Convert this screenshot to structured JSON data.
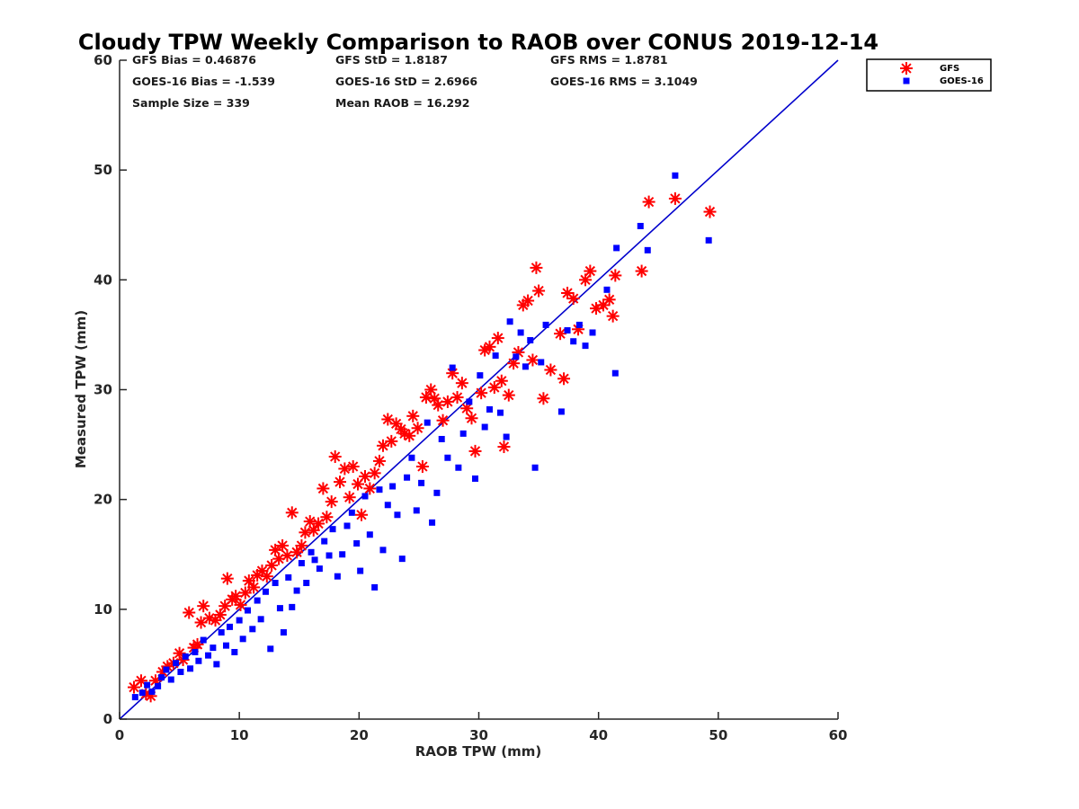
{
  "chart_data": {
    "type": "scatter",
    "title": "Cloudy TPW Weekly Comparison to RAOB over CONUS 2019-12-14",
    "xlabel": "RAOB TPW (mm)",
    "ylabel": "Measured TPW (mm)",
    "xlim": [
      0,
      60
    ],
    "ylim": [
      0,
      60
    ],
    "xticks": [
      "0",
      "10",
      "20",
      "30",
      "40",
      "50",
      "60"
    ],
    "yticks": [
      "0",
      "10",
      "20",
      "30",
      "40",
      "50",
      "60"
    ],
    "grid": false,
    "legend_position": "outside top-right",
    "stats": [
      [
        "GFS Bias = 0.46876",
        "GFS StD = 1.8187",
        "GFS RMS = 1.8781"
      ],
      [
        "GOES-16 Bias = -1.539",
        "GOES-16 StD = 2.6966",
        "GOES-16 RMS = 3.1049"
      ],
      [
        "Sample Size = 339",
        "Mean RAOB = 16.292"
      ]
    ],
    "reference_line": {
      "slope": 1,
      "intercept": 0,
      "color": "#0000cc"
    },
    "series": [
      {
        "name": "GFS",
        "marker": "asterisk",
        "color": "#ff0000",
        "points": [
          [
            1.2,
            2.9
          ],
          [
            1.8,
            3.5
          ],
          [
            2.2,
            2.3
          ],
          [
            2.6,
            2.1
          ],
          [
            3.0,
            3.5
          ],
          [
            3.6,
            4.3
          ],
          [
            4.0,
            4.8
          ],
          [
            4.5,
            5.1
          ],
          [
            5.0,
            6.0
          ],
          [
            5.3,
            5.4
          ],
          [
            5.8,
            9.7
          ],
          [
            6.2,
            6.5
          ],
          [
            6.5,
            6.8
          ],
          [
            6.8,
            8.8
          ],
          [
            7.0,
            10.3
          ],
          [
            7.5,
            9.2
          ],
          [
            8.0,
            9.0
          ],
          [
            8.4,
            9.5
          ],
          [
            8.8,
            10.3
          ],
          [
            9.0,
            12.8
          ],
          [
            9.4,
            10.9
          ],
          [
            9.7,
            11.2
          ],
          [
            10.1,
            10.4
          ],
          [
            10.5,
            11.5
          ],
          [
            10.8,
            12.6
          ],
          [
            11.2,
            12.0
          ],
          [
            11.5,
            13.1
          ],
          [
            11.9,
            13.5
          ],
          [
            12.3,
            13.0
          ],
          [
            12.7,
            14.0
          ],
          [
            13.0,
            15.4
          ],
          [
            13.3,
            14.6
          ],
          [
            13.6,
            15.8
          ],
          [
            14.0,
            14.9
          ],
          [
            14.4,
            18.8
          ],
          [
            14.8,
            15.2
          ],
          [
            15.2,
            15.8
          ],
          [
            15.5,
            17.0
          ],
          [
            15.9,
            18.0
          ],
          [
            16.2,
            17.2
          ],
          [
            16.6,
            17.8
          ],
          [
            17.0,
            21.0
          ],
          [
            17.3,
            18.4
          ],
          [
            17.7,
            19.8
          ],
          [
            18.0,
            23.9
          ],
          [
            18.4,
            21.6
          ],
          [
            18.8,
            22.8
          ],
          [
            19.2,
            20.2
          ],
          [
            19.5,
            23.0
          ],
          [
            19.9,
            21.4
          ],
          [
            20.2,
            18.6
          ],
          [
            20.5,
            22.1
          ],
          [
            20.9,
            21.0
          ],
          [
            21.3,
            22.4
          ],
          [
            21.7,
            23.5
          ],
          [
            22.0,
            24.9
          ],
          [
            22.4,
            27.3
          ],
          [
            22.7,
            25.3
          ],
          [
            23.1,
            26.9
          ],
          [
            23.5,
            26.4
          ],
          [
            23.8,
            26.0
          ],
          [
            24.2,
            25.8
          ],
          [
            24.5,
            27.6
          ],
          [
            24.9,
            26.5
          ],
          [
            25.3,
            23.0
          ],
          [
            25.6,
            29.3
          ],
          [
            26.0,
            30.0
          ],
          [
            26.3,
            29.2
          ],
          [
            26.6,
            28.6
          ],
          [
            27.0,
            27.2
          ],
          [
            27.4,
            28.9
          ],
          [
            27.8,
            31.5
          ],
          [
            28.2,
            29.3
          ],
          [
            28.6,
            30.6
          ],
          [
            29.0,
            28.3
          ],
          [
            29.4,
            27.4
          ],
          [
            29.7,
            24.4
          ],
          [
            30.2,
            29.7
          ],
          [
            30.5,
            33.6
          ],
          [
            30.9,
            33.9
          ],
          [
            31.3,
            30.2
          ],
          [
            31.6,
            34.7
          ],
          [
            31.9,
            30.8
          ],
          [
            32.1,
            24.8
          ],
          [
            32.5,
            29.5
          ],
          [
            32.9,
            32.4
          ],
          [
            33.3,
            33.4
          ],
          [
            33.7,
            37.7
          ],
          [
            34.1,
            38.1
          ],
          [
            34.5,
            32.7
          ],
          [
            34.8,
            41.1
          ],
          [
            35.0,
            39.0
          ],
          [
            35.4,
            29.2
          ],
          [
            36.0,
            31.8
          ],
          [
            36.8,
            35.1
          ],
          [
            37.1,
            31.0
          ],
          [
            37.4,
            38.8
          ],
          [
            37.9,
            38.3
          ],
          [
            38.3,
            35.5
          ],
          [
            38.9,
            40.0
          ],
          [
            39.3,
            40.8
          ],
          [
            39.8,
            37.4
          ],
          [
            40.4,
            37.7
          ],
          [
            40.9,
            38.2
          ],
          [
            41.2,
            36.7
          ],
          [
            41.4,
            40.4
          ],
          [
            43.6,
            40.8
          ],
          [
            44.2,
            47.1
          ],
          [
            46.4,
            47.4
          ],
          [
            49.3,
            46.2
          ]
        ]
      },
      {
        "name": "GOES-16",
        "marker": "square",
        "color": "#0000ff",
        "points": [
          [
            1.3,
            2.0
          ],
          [
            1.9,
            2.4
          ],
          [
            2.3,
            3.1
          ],
          [
            2.7,
            2.5
          ],
          [
            3.2,
            3.0
          ],
          [
            3.5,
            3.8
          ],
          [
            3.9,
            4.5
          ],
          [
            4.3,
            3.6
          ],
          [
            4.7,
            5.1
          ],
          [
            5.1,
            4.3
          ],
          [
            5.5,
            5.7
          ],
          [
            5.9,
            4.6
          ],
          [
            6.3,
            6.1
          ],
          [
            6.6,
            5.3
          ],
          [
            7.0,
            7.2
          ],
          [
            7.4,
            5.8
          ],
          [
            7.8,
            6.5
          ],
          [
            8.1,
            5.0
          ],
          [
            8.5,
            7.9
          ],
          [
            8.9,
            6.7
          ],
          [
            9.2,
            8.4
          ],
          [
            9.6,
            6.1
          ],
          [
            10.0,
            9.0
          ],
          [
            10.3,
            7.3
          ],
          [
            10.7,
            9.9
          ],
          [
            11.1,
            8.2
          ],
          [
            11.5,
            10.8
          ],
          [
            11.8,
            9.1
          ],
          [
            12.2,
            11.6
          ],
          [
            12.6,
            6.4
          ],
          [
            13.0,
            12.4
          ],
          [
            13.4,
            10.1
          ],
          [
            13.7,
            7.9
          ],
          [
            14.1,
            12.9
          ],
          [
            14.4,
            10.2
          ],
          [
            14.8,
            11.7
          ],
          [
            15.2,
            14.2
          ],
          [
            15.6,
            12.4
          ],
          [
            16.0,
            15.2
          ],
          [
            16.3,
            14.5
          ],
          [
            16.7,
            13.7
          ],
          [
            17.1,
            16.2
          ],
          [
            17.5,
            14.9
          ],
          [
            17.8,
            17.3
          ],
          [
            18.2,
            13.0
          ],
          [
            18.6,
            15.0
          ],
          [
            19.0,
            17.6
          ],
          [
            19.4,
            18.8
          ],
          [
            19.8,
            16.0
          ],
          [
            20.1,
            13.5
          ],
          [
            20.5,
            20.3
          ],
          [
            20.9,
            16.8
          ],
          [
            21.3,
            12.0
          ],
          [
            21.7,
            20.9
          ],
          [
            22.0,
            15.4
          ],
          [
            22.4,
            19.5
          ],
          [
            22.8,
            21.2
          ],
          [
            23.2,
            18.6
          ],
          [
            23.6,
            14.6
          ],
          [
            24.0,
            22.0
          ],
          [
            24.4,
            23.8
          ],
          [
            24.8,
            19.0
          ],
          [
            25.2,
            21.5
          ],
          [
            25.7,
            27.0
          ],
          [
            26.1,
            17.9
          ],
          [
            26.5,
            20.6
          ],
          [
            26.9,
            25.5
          ],
          [
            27.4,
            23.8
          ],
          [
            27.8,
            32.0
          ],
          [
            28.3,
            22.9
          ],
          [
            28.7,
            26.0
          ],
          [
            29.2,
            28.9
          ],
          [
            29.7,
            21.9
          ],
          [
            30.1,
            31.3
          ],
          [
            30.5,
            26.6
          ],
          [
            30.9,
            28.2
          ],
          [
            31.4,
            33.1
          ],
          [
            31.8,
            27.9
          ],
          [
            32.3,
            25.7
          ],
          [
            32.6,
            36.2
          ],
          [
            33.1,
            33.0
          ],
          [
            33.5,
            35.2
          ],
          [
            33.9,
            32.1
          ],
          [
            34.3,
            34.5
          ],
          [
            34.7,
            22.9
          ],
          [
            35.2,
            32.5
          ],
          [
            35.6,
            35.9
          ],
          [
            36.9,
            28.0
          ],
          [
            37.4,
            35.4
          ],
          [
            37.9,
            34.4
          ],
          [
            38.4,
            35.9
          ],
          [
            38.9,
            34.0
          ],
          [
            39.5,
            35.2
          ],
          [
            40.7,
            39.1
          ],
          [
            41.4,
            31.5
          ],
          [
            41.5,
            42.9
          ],
          [
            43.5,
            44.9
          ],
          [
            44.1,
            42.7
          ],
          [
            46.4,
            49.5
          ],
          [
            49.2,
            43.6
          ]
        ]
      }
    ]
  }
}
